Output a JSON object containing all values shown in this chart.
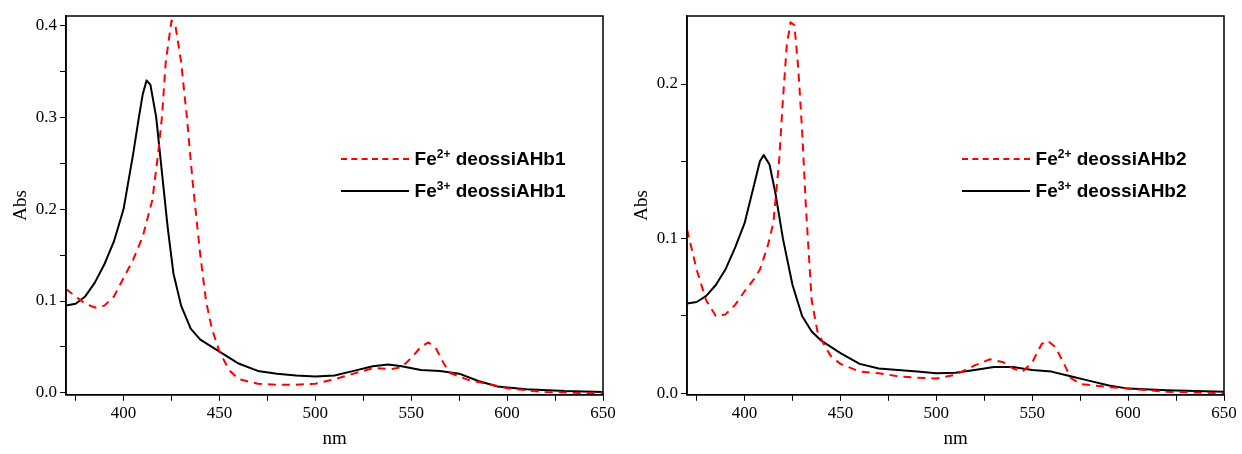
{
  "chart_data": [
    {
      "type": "line",
      "xlabel": "nm",
      "ylabel": "Abs",
      "xlim": [
        370,
        650
      ],
      "ylim": [
        -0.002,
        0.41
      ],
      "grid": false,
      "legend": "right",
      "xticks": [
        {
          "value": 375,
          "label": null
        },
        400,
        {
          "value": 425,
          "label": null
        },
        450,
        {
          "value": 475,
          "label": null
        },
        500,
        {
          "value": 525,
          "label": null
        },
        550,
        {
          "value": 575,
          "label": null
        },
        600,
        {
          "value": 625,
          "label": null
        },
        650
      ],
      "yticks": [
        {
          "value": 0,
          "label": "0.0"
        },
        {
          "value": 0.05,
          "label": null
        },
        0.1,
        {
          "value": 0.15,
          "label": null
        },
        0.2,
        {
          "value": 0.25,
          "label": null
        },
        0.3,
        {
          "value": 0.35,
          "label": null
        },
        0.4
      ],
      "series": [
        {
          "name": "Fe$^{2+}$ deossiAHb1",
          "color": "#ff0000",
          "line_style": "dashed",
          "x": [
            370,
            375,
            380,
            385,
            390,
            395,
            400,
            405,
            410,
            415,
            418,
            420,
            422,
            425,
            427,
            430,
            433,
            436,
            440,
            443,
            446,
            450,
            455,
            460,
            470,
            480,
            490,
            500,
            510,
            520,
            530,
            540,
            545,
            550,
            555,
            559,
            563,
            567,
            570,
            580,
            590,
            600,
            620,
            640,
            650
          ],
          "values": [
            0.113,
            0.105,
            0.097,
            0.093,
            0.095,
            0.105,
            0.125,
            0.145,
            0.17,
            0.21,
            0.26,
            0.3,
            0.36,
            0.405,
            0.4,
            0.36,
            0.3,
            0.23,
            0.15,
            0.1,
            0.07,
            0.045,
            0.025,
            0.015,
            0.01,
            0.009,
            0.009,
            0.01,
            0.015,
            0.021,
            0.027,
            0.026,
            0.028,
            0.038,
            0.05,
            0.055,
            0.048,
            0.032,
            0.022,
            0.014,
            0.01,
            0.005,
            0.001,
            0.0,
            0.0
          ]
        },
        {
          "name": "Fe$^{3+}$ deossiAHb1",
          "color": "#000000",
          "line_style": "solid",
          "x": [
            370,
            375,
            380,
            385,
            390,
            395,
            400,
            405,
            408,
            410,
            412,
            414,
            417,
            420,
            423,
            426,
            430,
            435,
            440,
            450,
            460,
            470,
            480,
            490,
            500,
            510,
            520,
            530,
            538,
            545,
            555,
            565,
            575,
            585,
            595,
            610,
            630,
            650
          ],
          "values": [
            0.095,
            0.097,
            0.105,
            0.12,
            0.14,
            0.165,
            0.2,
            0.26,
            0.3,
            0.325,
            0.34,
            0.335,
            0.3,
            0.24,
            0.18,
            0.13,
            0.095,
            0.07,
            0.058,
            0.045,
            0.032,
            0.024,
            0.021,
            0.019,
            0.018,
            0.019,
            0.024,
            0.029,
            0.031,
            0.029,
            0.025,
            0.024,
            0.021,
            0.013,
            0.007,
            0.004,
            0.002,
            0.001
          ]
        }
      ]
    },
    {
      "type": "line",
      "xlabel": "nm",
      "ylabel": "Abs",
      "xlim": [
        370,
        650
      ],
      "ylim": [
        -0.001,
        0.244
      ],
      "grid": false,
      "legend": "right",
      "xticks": [
        {
          "value": 375,
          "label": null
        },
        400,
        {
          "value": 425,
          "label": null
        },
        450,
        {
          "value": 475,
          "label": null
        },
        500,
        {
          "value": 525,
          "label": null
        },
        550,
        {
          "value": 575,
          "label": null
        },
        600,
        {
          "value": 625,
          "label": null
        },
        650
      ],
      "yticks": [
        {
          "value": 0,
          "label": "0.0"
        },
        {
          "value": 0.05,
          "label": null
        },
        0.1,
        {
          "value": 0.15,
          "label": null
        },
        0.2
      ],
      "series": [
        {
          "name": "Fe$^{2+}$ deossiAHb2",
          "color": "#ff0000",
          "line_style": "dashed",
          "x": [
            370,
            375,
            380,
            385,
            390,
            395,
            400,
            405,
            408,
            412,
            415,
            418,
            420,
            422,
            424,
            426,
            428,
            430,
            432,
            435,
            438,
            442,
            445,
            450,
            460,
            470,
            480,
            490,
            500,
            510,
            520,
            528,
            535,
            540,
            545,
            550,
            555,
            558,
            562,
            567,
            570,
            575,
            590,
            600,
            620,
            650
          ],
          "values": [
            0.106,
            0.08,
            0.06,
            0.05,
            0.051,
            0.057,
            0.066,
            0.074,
            0.08,
            0.095,
            0.11,
            0.15,
            0.19,
            0.225,
            0.24,
            0.238,
            0.21,
            0.17,
            0.12,
            0.06,
            0.04,
            0.03,
            0.024,
            0.019,
            0.014,
            0.013,
            0.011,
            0.01,
            0.0095,
            0.012,
            0.018,
            0.022,
            0.02,
            0.016,
            0.014,
            0.02,
            0.032,
            0.034,
            0.03,
            0.018,
            0.01,
            0.006,
            0.004,
            0.003,
            0.001,
            0.0
          ]
        },
        {
          "name": "Fe$^{3+}$ deossiAHb2",
          "color": "#000000",
          "line_style": "solid",
          "x": [
            370,
            375,
            380,
            385,
            390,
            395,
            400,
            405,
            408,
            410,
            413,
            416,
            420,
            425,
            430,
            435,
            440,
            450,
            460,
            470,
            480,
            490,
            500,
            510,
            520,
            530,
            540,
            550,
            560,
            570,
            580,
            590,
            600,
            620,
            650
          ],
          "values": [
            0.058,
            0.059,
            0.063,
            0.07,
            0.08,
            0.094,
            0.11,
            0.135,
            0.15,
            0.154,
            0.148,
            0.13,
            0.1,
            0.07,
            0.05,
            0.04,
            0.034,
            0.026,
            0.019,
            0.016,
            0.015,
            0.014,
            0.013,
            0.0132,
            0.015,
            0.017,
            0.017,
            0.015,
            0.014,
            0.011,
            0.008,
            0.005,
            0.003,
            0.002,
            0.001
          ]
        }
      ]
    }
  ]
}
